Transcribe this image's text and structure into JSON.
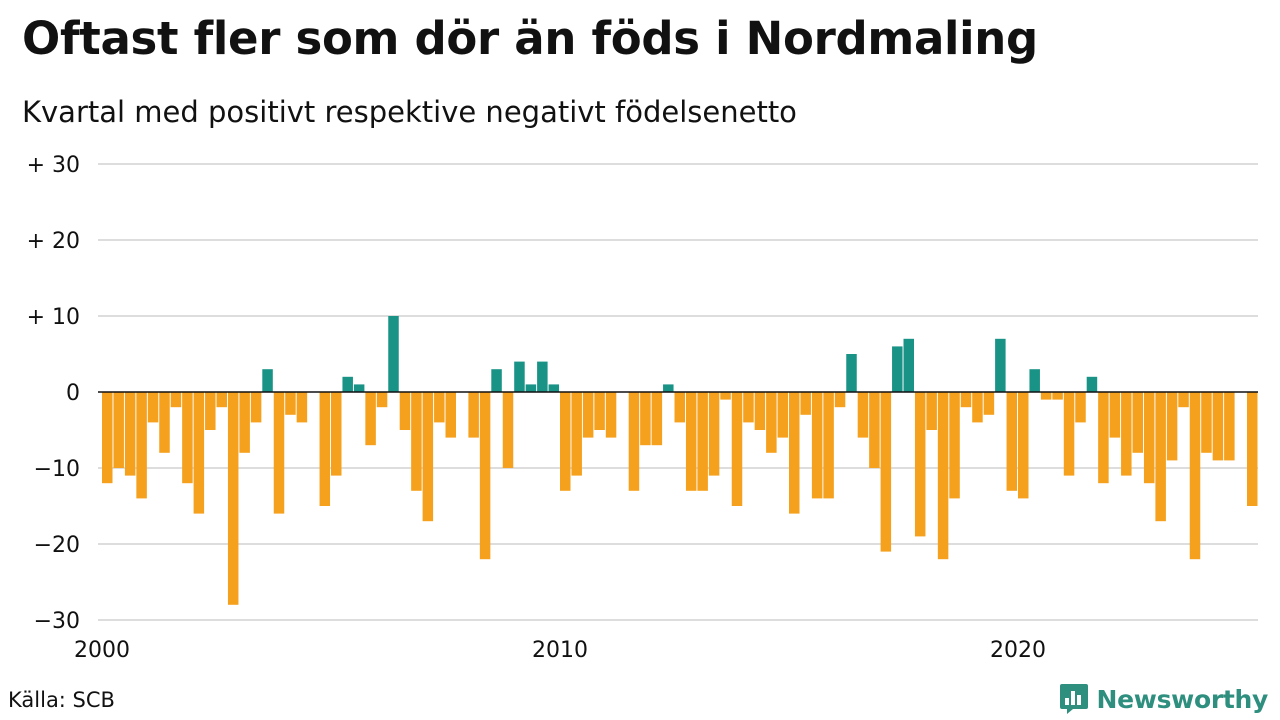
{
  "title": "Oftast fler som dör än föds i Nordmaling",
  "subtitle": "Kvartal med positivt respektive negativt födelsenetto",
  "source": "Källa: SCB",
  "brand": {
    "name": "Newsworthy",
    "icon": "bar-chart-icon"
  },
  "colors": {
    "positive": "#1a9387",
    "negative": "#f5a11d",
    "grid": "#dddddd",
    "axis": "#111111"
  },
  "chart_data": {
    "type": "bar",
    "ylim": [
      -30,
      30
    ],
    "yticks": [
      {
        "value": 30,
        "label": "+ 30"
      },
      {
        "value": 20,
        "label": "+ 20"
      },
      {
        "value": 10,
        "label": "+ 10"
      },
      {
        "value": 0,
        "label": "0"
      },
      {
        "value": -10,
        "label": "−10"
      },
      {
        "value": -20,
        "label": "−20"
      },
      {
        "value": -30,
        "label": "−30"
      }
    ],
    "xticks": [
      {
        "label": "2000",
        "index": 0
      },
      {
        "label": "2010",
        "index": 40
      },
      {
        "label": "2020",
        "index": 80
      }
    ],
    "first_period": "2000 Q1",
    "frequency": "quarterly",
    "values": [
      -12,
      -10,
      -11,
      -14,
      -4,
      -8,
      -2,
      -12,
      -16,
      -5,
      -2,
      -28,
      -8,
      -4,
      3,
      -16,
      -3,
      -4,
      0,
      -15,
      -11,
      2,
      1,
      -7,
      -2,
      10,
      -5,
      -13,
      -17,
      -4,
      -6,
      0,
      -6,
      -22,
      3,
      -10,
      4,
      1,
      4,
      1,
      -13,
      -11,
      -6,
      -5,
      -6,
      0,
      -13,
      -7,
      -7,
      1,
      -4,
      -13,
      -13,
      -11,
      -1,
      -15,
      -4,
      -5,
      -8,
      -6,
      -16,
      -3,
      -14,
      -14,
      -2,
      5,
      -6,
      -10,
      -21,
      6,
      7,
      -19,
      -5,
      -22,
      -14,
      -2,
      -4,
      -3,
      7,
      -13,
      -14,
      3,
      -1,
      -1,
      -11,
      -4,
      2,
      -12,
      -6,
      -11,
      -8,
      -12,
      -17,
      -9,
      -2,
      -22,
      -8,
      -9,
      -9,
      0,
      -15
    ]
  }
}
